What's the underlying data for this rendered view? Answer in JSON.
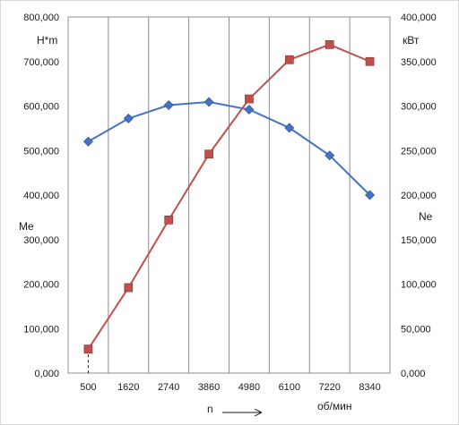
{
  "chart_data": {
    "type": "line",
    "categories": [
      "500",
      "1620",
      "2740",
      "3860",
      "4980",
      "6100",
      "7220",
      "8340"
    ],
    "series": [
      {
        "axis": "left",
        "color": "#4472c4",
        "marker": "diamond",
        "values": [
          520,
          572,
          602,
          609,
          592,
          551,
          489,
          400
        ]
      },
      {
        "axis": "right",
        "color": "#c0504d",
        "marker": "square",
        "values": [
          27,
          96,
          172,
          246,
          308,
          352,
          369,
          350
        ]
      }
    ],
    "y_left": {
      "min": 0,
      "max": 800,
      "step": 100,
      "tick_labels": [
        "0,000",
        "100,000",
        "200,000",
        "300,000",
        "400,000",
        "500,000",
        "600,000",
        "700,000",
        "800,000"
      ],
      "unit": "Н*m",
      "label": "Me"
    },
    "y_right": {
      "min": 0,
      "max": 400,
      "step": 50,
      "tick_labels": [
        "0,000",
        "50,000",
        "100,000",
        "150,000",
        "200,000",
        "250,000",
        "300,000",
        "350,000",
        "400,000"
      ],
      "unit": "кВт",
      "label": "Ne"
    },
    "x_axis": {
      "label": "n",
      "unit": "об/мин"
    },
    "grid": "vertical",
    "legend": "none"
  }
}
